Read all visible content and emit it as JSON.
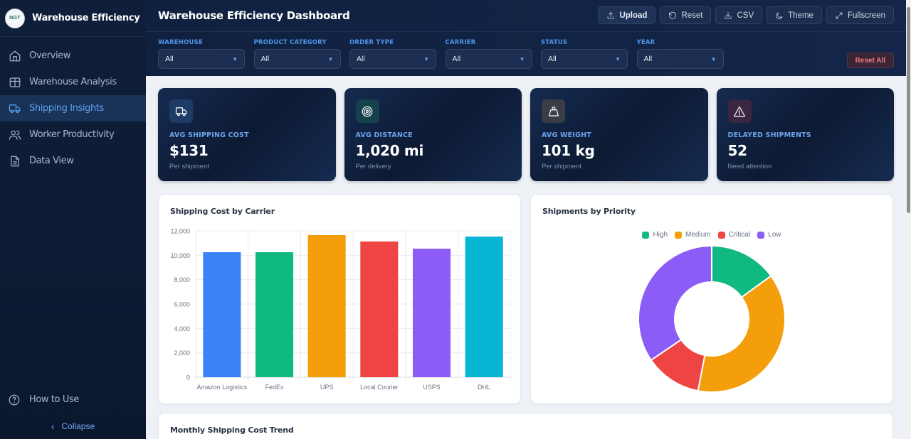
{
  "sidebar": {
    "logo_text": "NGT",
    "brand": "Warehouse Efficiency",
    "items": [
      {
        "label": "Overview",
        "icon": "home-icon",
        "active": false
      },
      {
        "label": "Warehouse Analysis",
        "icon": "table-icon",
        "active": false
      },
      {
        "label": "Shipping Insights",
        "icon": "truck-icon",
        "active": true
      },
      {
        "label": "Worker Productivity",
        "icon": "users-icon",
        "active": false
      },
      {
        "label": "Data View",
        "icon": "file-icon",
        "active": false
      }
    ],
    "help_label": "How to Use",
    "collapse_label": "Collapse"
  },
  "header": {
    "title": "Warehouse Efficiency Dashboard",
    "actions": {
      "upload": "Upload",
      "reset": "Reset",
      "csv": "CSV",
      "theme": "Theme",
      "fullscreen": "Fullscreen"
    },
    "filters": [
      {
        "label": "WAREHOUSE",
        "value": "All"
      },
      {
        "label": "PRODUCT CATEGORY",
        "value": "All"
      },
      {
        "label": "ORDER TYPE",
        "value": "All"
      },
      {
        "label": "CARRIER",
        "value": "All"
      },
      {
        "label": "STATUS",
        "value": "All"
      },
      {
        "label": "YEAR",
        "value": "All"
      }
    ],
    "reset_all": "Reset All"
  },
  "kpis": [
    {
      "label": "AVG SHIPPING COST",
      "value": "$131",
      "sub": "Per shipment",
      "icon": "truck-icon",
      "icon_bg": "#1e3a66"
    },
    {
      "label": "AVG DISTANCE",
      "value": "1,020 mi",
      "sub": "Per delivery",
      "icon": "target-icon",
      "icon_bg": "#14414a"
    },
    {
      "label": "AVG WEIGHT",
      "value": "101 kg",
      "sub": "Per shipment",
      "icon": "weight-icon",
      "icon_bg": "#3a3d45"
    },
    {
      "label": "DELAYED SHIPMENTS",
      "value": "52",
      "sub": "Need attention",
      "icon": "alert-triangle-icon",
      "icon_bg": "#3a2640"
    }
  ],
  "trend_card": {
    "title": "Monthly Shipping Cost Trend"
  },
  "chart_data": [
    {
      "type": "bar",
      "title": "Shipping Cost by Carrier",
      "categories": [
        "Amazon Logistics",
        "FedEx",
        "UPS",
        "Local Courier",
        "USPS",
        "DHL"
      ],
      "values": [
        10250,
        10250,
        11650,
        11130,
        10540,
        11530
      ],
      "colors": [
        "#3b82f6",
        "#10b981",
        "#f59e0b",
        "#ef4444",
        "#8b5cf6",
        "#06b6d4"
      ],
      "xlabel": "",
      "ylabel": "",
      "ylim": [
        0,
        12000
      ],
      "yticks": [
        0,
        2000,
        4000,
        6000,
        8000,
        10000,
        12000
      ],
      "ytick_labels": [
        "0",
        "2,000",
        "4,000",
        "6,000",
        "8,000",
        "10,000",
        "12,000"
      ],
      "grid": true
    },
    {
      "type": "pie",
      "title": "Shipments by Priority",
      "donut": true,
      "labels": [
        "High",
        "Medium",
        "Critical",
        "Low"
      ],
      "values": [
        15,
        38,
        12.5,
        34.5
      ],
      "colors": [
        "#10b981",
        "#f59e0b",
        "#ef4444",
        "#8b5cf6"
      ],
      "legend": "top"
    }
  ]
}
